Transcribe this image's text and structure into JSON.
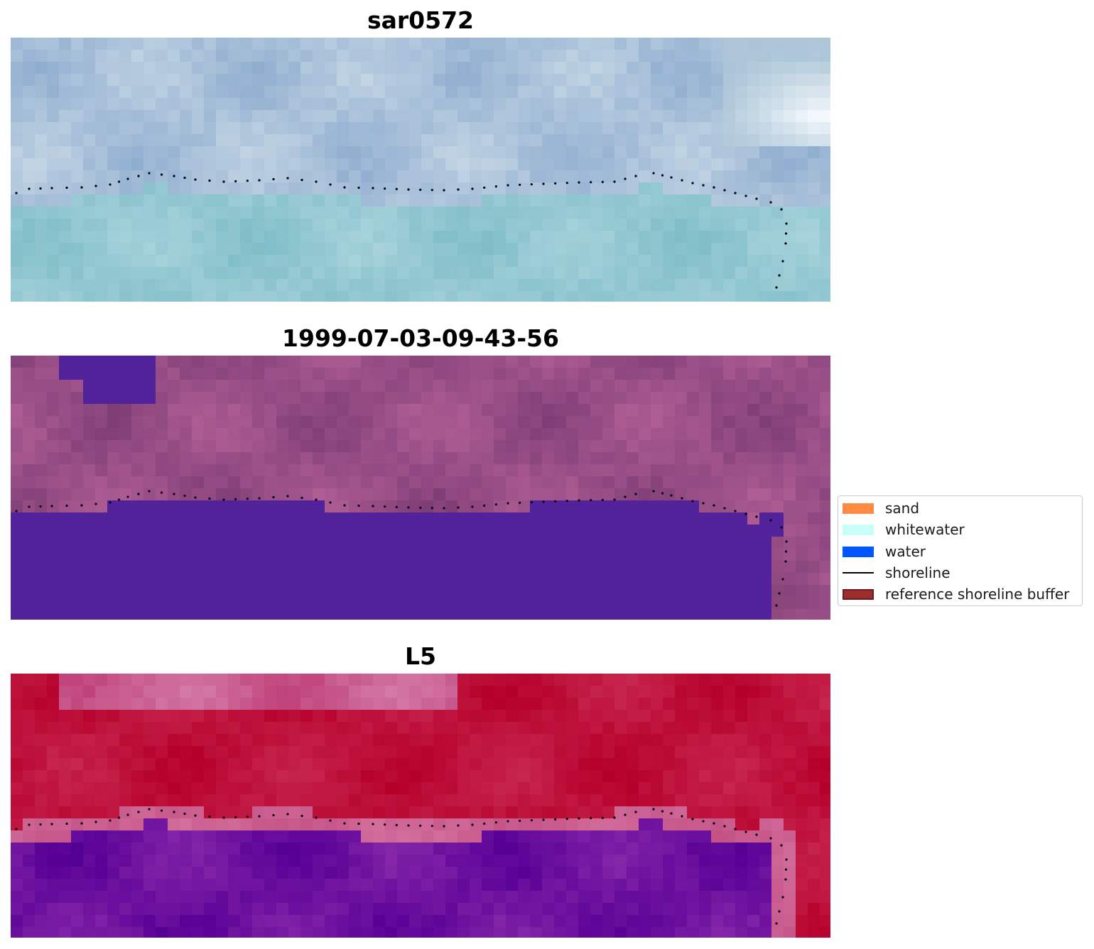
{
  "panels": [
    {
      "title": "sar0572",
      "image_desc": "RGB satellite image (light blue-grey tones) with reference shoreline dots"
    },
    {
      "title": "1999-07-03-09-43-56",
      "image_desc": "classified image: purple water class over mauve land, with shoreline dots"
    },
    {
      "title": "L5",
      "image_desc": "water index image: crimson land, violet water, with shoreline dots"
    }
  ],
  "legend": {
    "placement": "center-right",
    "items": [
      {
        "label": "sand",
        "color": "#ff8c42",
        "kind": "patch"
      },
      {
        "label": "whitewater",
        "color": "#c8fff9",
        "kind": "patch"
      },
      {
        "label": "water",
        "color": "#0055ff",
        "kind": "patch"
      },
      {
        "label": "shoreline",
        "color": "#000000",
        "kind": "line"
      },
      {
        "label": "reference shoreline buffer",
        "color": "#9b2d2d",
        "edge": "#6e1a1a",
        "kind": "patch"
      }
    ]
  },
  "shoreline_trace": [
    [
      8,
      219
    ],
    [
      26,
      213
    ],
    [
      58,
      212
    ],
    [
      100,
      211
    ],
    [
      140,
      207
    ],
    [
      165,
      199
    ],
    [
      195,
      191
    ],
    [
      230,
      195
    ],
    [
      260,
      200
    ],
    [
      300,
      203
    ],
    [
      350,
      201
    ],
    [
      390,
      198
    ],
    [
      430,
      203
    ],
    [
      470,
      211
    ],
    [
      510,
      212
    ],
    [
      560,
      214
    ],
    [
      610,
      215
    ],
    [
      650,
      213
    ],
    [
      700,
      208
    ],
    [
      750,
      206
    ],
    [
      800,
      204
    ],
    [
      850,
      203
    ],
    [
      880,
      195
    ],
    [
      905,
      191
    ],
    [
      930,
      197
    ],
    [
      960,
      205
    ],
    [
      990,
      211
    ],
    [
      1020,
      219
    ],
    [
      1050,
      227
    ],
    [
      1070,
      232
    ],
    [
      1085,
      242
    ],
    [
      1092,
      262
    ],
    [
      1091,
      290
    ],
    [
      1087,
      315
    ],
    [
      1082,
      335
    ],
    [
      1078,
      352
    ],
    [
      1074,
      366
    ]
  ]
}
